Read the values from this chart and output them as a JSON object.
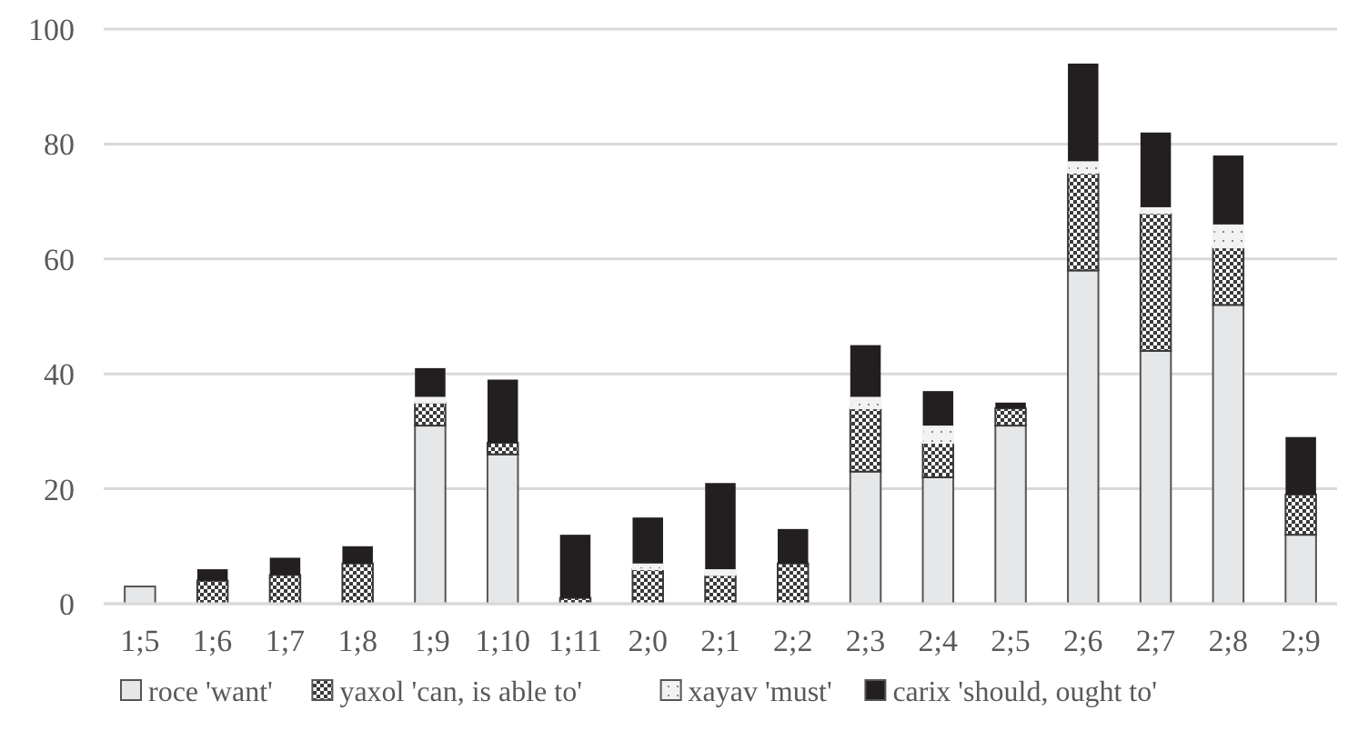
{
  "chart_data": {
    "type": "bar",
    "stacked": true,
    "categories": [
      "1;5",
      "1;6",
      "1;7",
      "1;8",
      "1;9",
      "1;10",
      "1;11",
      "2;0",
      "2;1",
      "2;2",
      "2;3",
      "2;4",
      "2;5",
      "2;6",
      "2;7",
      "2;8",
      "2;9"
    ],
    "series": [
      {
        "name": "roce 'want'",
        "color": "#e6e7e8",
        "values": [
          3,
          0,
          0,
          0,
          31,
          26,
          0,
          0,
          0,
          0,
          23,
          22,
          31,
          58,
          44,
          52,
          12
        ]
      },
      {
        "name": "yaxol 'can, is able to'",
        "color": "#3a3a3a",
        "values": [
          0,
          4,
          5,
          7,
          4,
          2,
          1,
          6,
          5,
          7,
          11,
          6,
          3,
          17,
          24,
          10,
          7
        ]
      },
      {
        "name": "xayav 'must'",
        "color": "#f2f2f2",
        "values": [
          0,
          0,
          0,
          0,
          1,
          0,
          0,
          1,
          1,
          0,
          2,
          3,
          0,
          2,
          1,
          4,
          0
        ]
      },
      {
        "name": "carix 'should, ought to'",
        "color": "#231f20",
        "values": [
          0,
          2,
          3,
          3,
          5,
          11,
          11,
          8,
          15,
          6,
          9,
          6,
          1,
          17,
          13,
          12,
          10
        ]
      }
    ],
    "ylim": [
      0,
      100
    ],
    "yticks": [
      0,
      20,
      40,
      60,
      80,
      100
    ],
    "grid": "y",
    "legend": "bottom"
  }
}
